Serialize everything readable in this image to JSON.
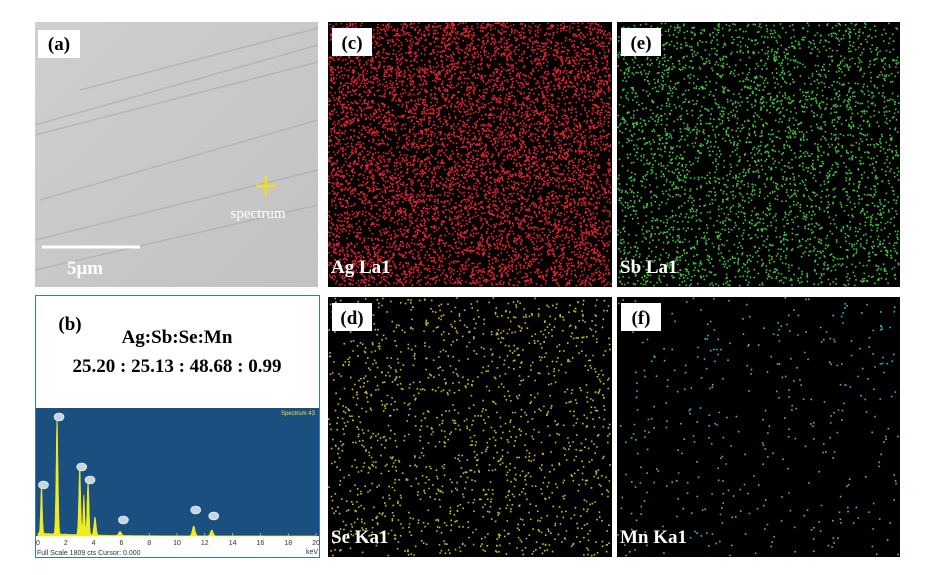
{
  "panel_a": {
    "label": "(a)",
    "marker_label": "spectrum",
    "scale_bar": "5μm"
  },
  "panel_b": {
    "label": "(b)",
    "formula": "Ag:Sb:Se:Mn",
    "ratio": "25.20 : 25.13 : 48.68 : 0.99",
    "spectrum": {
      "title": "Spectrum 43",
      "xlim": [
        0,
        20
      ],
      "xticks": [
        0,
        2,
        4,
        6,
        8,
        10,
        12,
        14,
        16,
        18,
        20
      ],
      "unit": "keV",
      "footer": "Full Scale 1809 cts Cursor: 0.000"
    }
  },
  "maps": [
    {
      "label": "(c)",
      "element": "Ag La1",
      "color": "#e8222c"
    },
    {
      "label": "(e)",
      "element": "Sb La1",
      "color": "#3ec83a"
    },
    {
      "label": "(d)",
      "element": "Se Ka1",
      "color": "#c9c020"
    },
    {
      "label": "(f)",
      "element": "Mn Ka1",
      "color": "#3fb8c8"
    }
  ]
}
